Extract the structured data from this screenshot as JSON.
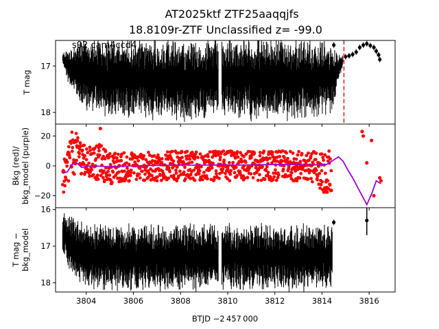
{
  "figure": {
    "title_line1": "AT2025ktf  ZTF25aaqqjfs",
    "title_line2": "18.8109r-ZTF Unclassified z= -99.0",
    "annotation": "s92 cam4ccd4",
    "xlabel": "BTJD −2 457 000"
  },
  "chart_data": [
    {
      "type": "scatter",
      "panel": "top",
      "ylabel": "T mag",
      "yinverted": true,
      "xlim": [
        3802.7,
        3817.1
      ],
      "ylim": [
        18.25,
        16.45
      ],
      "yticks": [
        17,
        18
      ],
      "ytick_labels": [
        "17",
        "18"
      ],
      "color": "#000000",
      "vline": {
        "x": 3814.93,
        "color": "#d62728",
        "style": "dashed"
      },
      "envelope": [
        {
          "x": 3803.0,
          "lo": 16.75,
          "hi": 16.9
        },
        {
          "x": 3803.25,
          "lo": 16.7,
          "hi": 17.3
        },
        {
          "x": 3803.6,
          "lo": 16.6,
          "hi": 17.6
        },
        {
          "x": 3804.0,
          "lo": 16.6,
          "hi": 17.8
        },
        {
          "x": 3805.0,
          "lo": 16.6,
          "hi": 17.9
        },
        {
          "x": 3806.5,
          "lo": 16.6,
          "hi": 17.95
        },
        {
          "x": 3808.0,
          "lo": 16.6,
          "hi": 17.95
        },
        {
          "x": 3809.6,
          "lo": 16.6,
          "hi": 17.95
        },
        {
          "x": 3810.5,
          "lo": 16.6,
          "hi": 17.95
        },
        {
          "x": 3812.0,
          "lo": 16.6,
          "hi": 17.95
        },
        {
          "x": 3813.5,
          "lo": 16.6,
          "hi": 17.95
        },
        {
          "x": 3814.4,
          "lo": 16.7,
          "hi": 17.85
        },
        {
          "x": 3814.7,
          "lo": 16.8,
          "hi": 17.3
        },
        {
          "x": 3814.9,
          "lo": 16.8,
          "hi": 16.95
        }
      ],
      "gaps": [
        [
          3809.6,
          3809.75
        ]
      ],
      "points": [
        {
          "x": 3815.0,
          "y": 16.8
        },
        {
          "x": 3815.15,
          "y": 16.78
        },
        {
          "x": 3815.3,
          "y": 16.75
        },
        {
          "x": 3815.45,
          "y": 16.7
        },
        {
          "x": 3815.6,
          "y": 16.6
        },
        {
          "x": 3815.75,
          "y": 16.55
        },
        {
          "x": 3815.9,
          "y": 16.52
        },
        {
          "x": 3816.05,
          "y": 16.56
        },
        {
          "x": 3816.2,
          "y": 16.6
        },
        {
          "x": 3816.3,
          "y": 16.68
        },
        {
          "x": 3816.4,
          "y": 16.76
        },
        {
          "x": 3816.45,
          "y": 16.86
        },
        {
          "x": 3814.5,
          "y": 16.55
        }
      ]
    },
    {
      "type": "scatter",
      "panel": "middle",
      "ylabel": "Bkg (red)/\nbkg_model (purple)",
      "xlim": [
        3802.7,
        3817.1
      ],
      "ylim": [
        -28,
        28
      ],
      "yticks": [
        -20,
        0,
        20
      ],
      "ytick_labels": [
        "−20",
        "0",
        "20"
      ],
      "series": [
        {
          "name": "Bkg",
          "color": "#ff0000",
          "envelope": [
            {
              "x": 3803.0,
              "lo": -20,
              "hi": -2
            },
            {
              "x": 3803.3,
              "lo": -8,
              "hi": 23
            },
            {
              "x": 3803.6,
              "lo": -5,
              "hi": 22
            },
            {
              "x": 3804.0,
              "lo": -6,
              "hi": 12
            },
            {
              "x": 3804.5,
              "lo": -10,
              "hi": 15
            },
            {
              "x": 3805.0,
              "lo": -12,
              "hi": 9
            },
            {
              "x": 3806.0,
              "lo": -10,
              "hi": 9
            },
            {
              "x": 3808.0,
              "lo": -10,
              "hi": 10
            },
            {
              "x": 3809.6,
              "lo": -10,
              "hi": 10
            },
            {
              "x": 3810.5,
              "lo": -10,
              "hi": 10
            },
            {
              "x": 3812.0,
              "lo": -10,
              "hi": 10
            },
            {
              "x": 3813.5,
              "lo": -10,
              "hi": 10
            },
            {
              "x": 3814.4,
              "lo": -22,
              "hi": 10
            }
          ],
          "points": [
            {
              "x": 3815.7,
              "y": 23
            },
            {
              "x": 3815.75,
              "y": 20
            },
            {
              "x": 3816.1,
              "y": 17
            },
            {
              "x": 3816.45,
              "y": -8
            },
            {
              "x": 3816.5,
              "y": -10
            },
            {
              "x": 3816.2,
              "y": -20
            },
            {
              "x": 3804.6,
              "y": 25
            },
            {
              "x": 3815.9,
              "y": 2
            }
          ]
        },
        {
          "name": "bkg_model",
          "color": "#9b00d3",
          "line": [
            {
              "x": 3803.0,
              "y": -5
            },
            {
              "x": 3803.2,
              "y": -4
            },
            {
              "x": 3803.4,
              "y": 1
            },
            {
              "x": 3803.6,
              "y": 2
            },
            {
              "x": 3803.8,
              "y": -1
            },
            {
              "x": 3804.2,
              "y": 0
            },
            {
              "x": 3805.0,
              "y": -0.5
            },
            {
              "x": 3806.0,
              "y": 0
            },
            {
              "x": 3807.0,
              "y": 0.3
            },
            {
              "x": 3808.0,
              "y": 0.5
            },
            {
              "x": 3809.0,
              "y": 0.5
            },
            {
              "x": 3809.6,
              "y": 0.6
            },
            {
              "x": 3810.5,
              "y": 0.5
            },
            {
              "x": 3811.5,
              "y": 0.8
            },
            {
              "x": 3812.5,
              "y": 1
            },
            {
              "x": 3813.5,
              "y": 0.5
            },
            {
              "x": 3814.2,
              "y": 1
            },
            {
              "x": 3814.5,
              "y": 4
            },
            {
              "x": 3814.7,
              "y": 6
            },
            {
              "x": 3814.9,
              "y": 3
            },
            {
              "x": 3815.1,
              "y": -3
            },
            {
              "x": 3815.3,
              "y": -8
            },
            {
              "x": 3815.5,
              "y": -14
            },
            {
              "x": 3815.7,
              "y": -20
            },
            {
              "x": 3815.9,
              "y": -26
            },
            {
              "x": 3816.1,
              "y": -19
            },
            {
              "x": 3816.3,
              "y": -10
            },
            {
              "x": 3816.5,
              "y": -12
            }
          ]
        }
      ]
    },
    {
      "type": "scatter",
      "panel": "bottom",
      "ylabel": "T mag −\nbkg_model",
      "yinverted": true,
      "xlim": [
        3802.7,
        3817.1
      ],
      "ylim": [
        18.25,
        15.95
      ],
      "yticks": [
        16,
        17,
        18
      ],
      "ytick_labels": [
        "16",
        "17",
        "18"
      ],
      "xticks": [
        3804,
        3806,
        3808,
        3810,
        3812,
        3814,
        3816
      ],
      "xtick_labels": [
        "3804",
        "3806",
        "3808",
        "3810",
        "3812",
        "3814",
        "3816"
      ],
      "color": "#000000",
      "envelope": [
        {
          "x": 3803.0,
          "lo": 16.2,
          "hi": 17.1
        },
        {
          "x": 3803.3,
          "lo": 16.3,
          "hi": 17.5
        },
        {
          "x": 3803.6,
          "lo": 16.5,
          "hi": 17.85
        },
        {
          "x": 3804.0,
          "lo": 16.6,
          "hi": 17.95
        },
        {
          "x": 3805.0,
          "lo": 16.6,
          "hi": 18.0
        },
        {
          "x": 3807.0,
          "lo": 16.6,
          "hi": 18.0
        },
        {
          "x": 3809.6,
          "lo": 16.6,
          "hi": 18.0
        },
        {
          "x": 3810.5,
          "lo": 16.6,
          "hi": 18.0
        },
        {
          "x": 3812.0,
          "lo": 16.6,
          "hi": 18.0
        },
        {
          "x": 3814.45,
          "lo": 16.6,
          "hi": 18.0
        }
      ],
      "gaps": [
        [
          3809.6,
          3809.75
        ]
      ],
      "points": [
        {
          "x": 3815.9,
          "y": 16.3,
          "err": 0.4
        },
        {
          "x": 3814.5,
          "y": 16.35
        }
      ]
    }
  ]
}
